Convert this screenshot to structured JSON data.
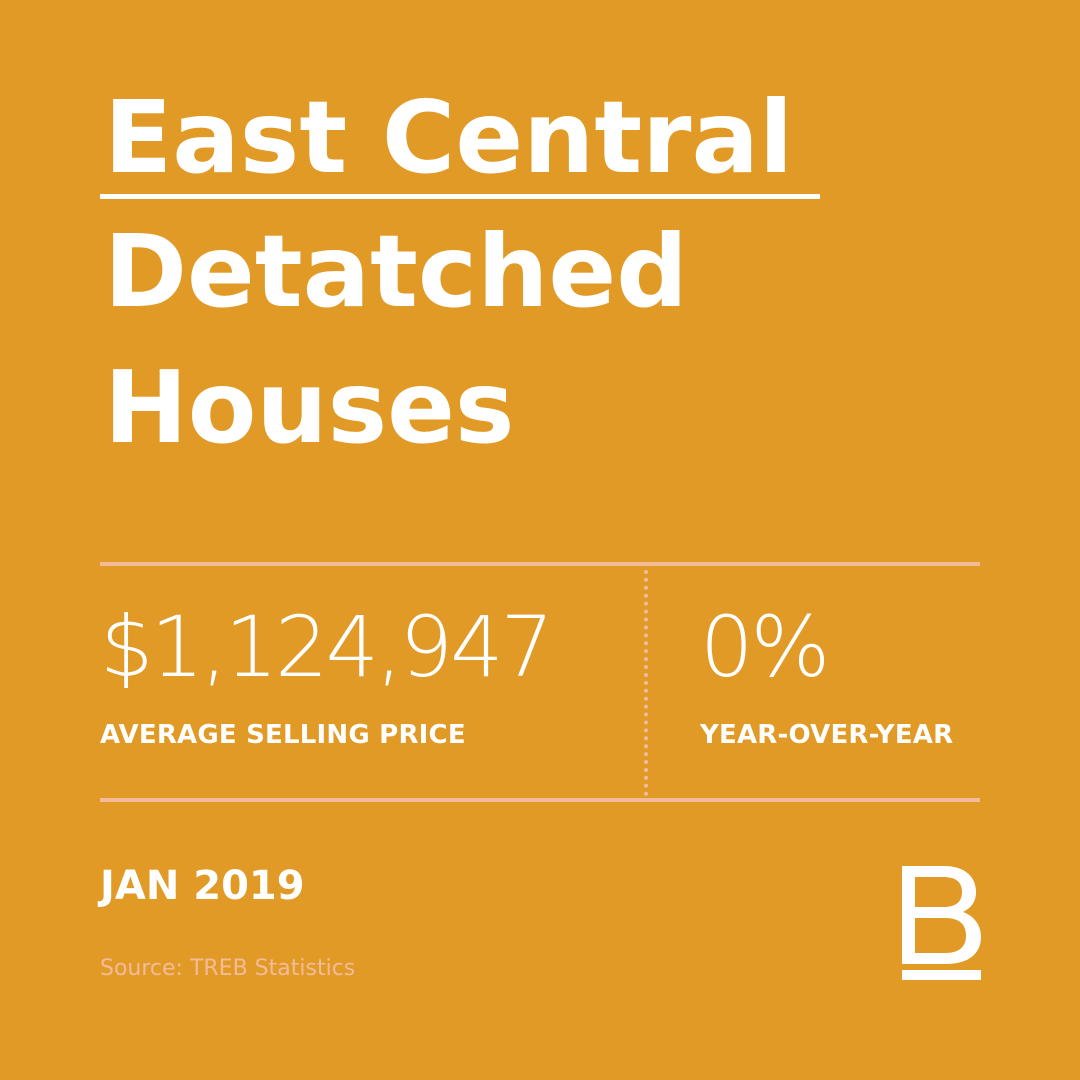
{
  "title": {
    "line1": "East Central",
    "line2": "Detatched",
    "line3": "Houses"
  },
  "stats": {
    "price": {
      "value": "$1,124,947",
      "label": "AVERAGE SELLING PRICE"
    },
    "yoy": {
      "value": "0%",
      "label": "YEAR-OVER-YEAR"
    }
  },
  "date": "JAN 2019",
  "source": "Source: TREB Statistics",
  "logo": {
    "icon": "b-logo-icon",
    "letter": "B"
  },
  "colors": {
    "background": "#E29A26",
    "text": "#FFFFFF",
    "accent": "#F2BC9A"
  }
}
